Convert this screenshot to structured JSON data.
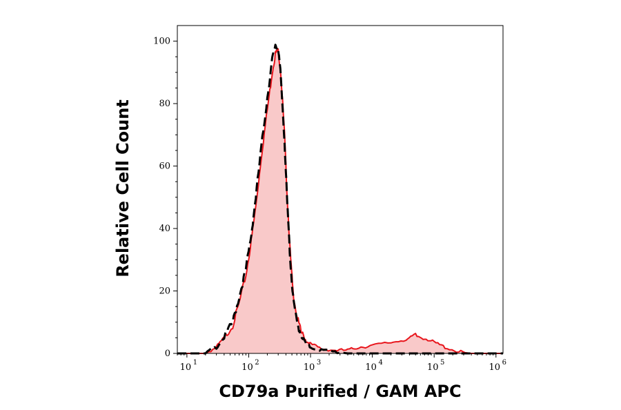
{
  "chart_data": {
    "type": "area",
    "xlabel": "CD79a Purified / GAM APC",
    "ylabel": "Relative Cell Count",
    "xscale": "log",
    "xlim": [
      7,
      1300000
    ],
    "ylim": [
      0,
      105
    ],
    "x_ticks": [
      {
        "value": 10,
        "base": "10",
        "exp": "1"
      },
      {
        "value": 100,
        "base": "10",
        "exp": "2"
      },
      {
        "value": 1000,
        "base": "10",
        "exp": "3"
      },
      {
        "value": 10000,
        "base": "10",
        "exp": "4"
      },
      {
        "value": 100000,
        "base": "10",
        "exp": "5"
      },
      {
        "value": 1000000,
        "base": "10",
        "exp": "6"
      }
    ],
    "y_ticks": [
      0,
      20,
      40,
      60,
      80,
      100
    ],
    "grid": false,
    "legend": "none",
    "series": [
      {
        "style": "filled area, red outline",
        "color": "#e8141b",
        "fill": "#f9c9c9",
        "x": [
          7,
          20,
          30,
          40,
          55,
          70,
          90,
          110,
          130,
          160,
          200,
          240,
          270,
          300,
          330,
          380,
          420,
          470,
          520,
          600,
          700,
          850,
          1000,
          1500,
          2500,
          4000,
          6000,
          10000,
          20000,
          35000,
          50000,
          70000,
          100000,
          150000,
          250000,
          400000,
          700000,
          1300000
        ],
        "y": [
          0,
          0,
          2,
          5,
          9,
          16,
          25,
          36,
          47,
          63,
          78,
          90,
          96,
          97,
          90,
          70,
          50,
          32,
          20,
          12,
          7,
          4,
          3,
          1.5,
          1,
          1,
          2,
          2.5,
          3.5,
          4.5,
          5.5,
          5,
          3.5,
          2,
          0.5,
          0,
          0,
          0
        ]
      },
      {
        "style": "black dashed line",
        "color": "#000000",
        "x": [
          7,
          20,
          30,
          40,
          55,
          70,
          90,
          110,
          130,
          160,
          200,
          240,
          270,
          300,
          330,
          380,
          420,
          470,
          520,
          600,
          700,
          850,
          1000,
          1500,
          2500,
          4000,
          6000,
          10000,
          20000,
          50000,
          100000,
          300000,
          1300000
        ],
        "y": [
          0,
          0,
          2,
          5,
          10,
          18,
          27,
          38,
          50,
          66,
          82,
          94,
          99,
          97,
          89,
          68,
          48,
          30,
          18,
          10,
          6,
          3,
          2,
          1,
          0.5,
          0,
          0,
          0,
          0,
          0,
          0,
          0,
          0
        ]
      }
    ]
  }
}
